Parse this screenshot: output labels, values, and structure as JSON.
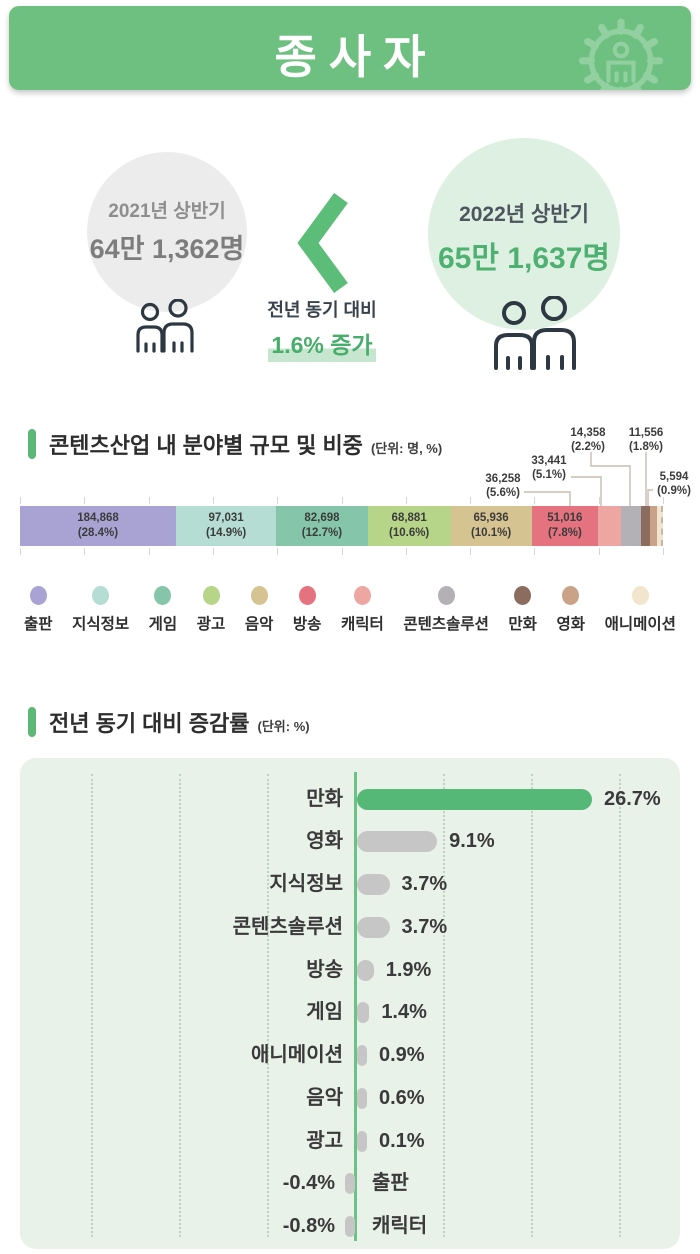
{
  "header": {
    "title": "종사자",
    "bg_color": "#6ec081",
    "icon": "gear-person"
  },
  "comparison": {
    "previous": {
      "period": "2021년 상반기",
      "value": "64만 1,362명"
    },
    "current": {
      "period": "2022년 상반기",
      "value": "65만 1,637명"
    },
    "change_prefix": "전년 동기 대비",
    "change_value": "1.6% 증가",
    "accent_color": "#46ae69"
  },
  "sections": {
    "share": {
      "title_regular": "콘텐츠산업 내 분야별 ",
      "title_bold": "규모 및 비중",
      "unit": "(단위: 명, %)"
    },
    "growth": {
      "title_regular": "전년 동기 대비 ",
      "title_bold": "증감률",
      "unit": "(단위: %)"
    }
  },
  "chart_data": [
    {
      "type": "bar",
      "subtype": "stacked-horizontal-share",
      "title": "콘텐츠산업 내 분야별 규모 및 비중",
      "unit": "명, %",
      "categories": [
        "출판",
        "지식정보",
        "게임",
        "광고",
        "음악",
        "방송",
        "캐릭터",
        "콘텐츠솔루션",
        "만화",
        "영화",
        "애니메이션"
      ],
      "values": [
        184868,
        97031,
        82698,
        68881,
        65936,
        51016,
        36258,
        33441,
        14358,
        11556,
        5594
      ],
      "percents": [
        28.4,
        14.9,
        12.7,
        10.6,
        10.1,
        7.8,
        5.6,
        5.1,
        2.2,
        1.8,
        0.9
      ],
      "value_labels": [
        "184,868",
        "97,031",
        "82,698",
        "68,881",
        "65,936",
        "51,016",
        "36,258",
        "33,441",
        "14,358",
        "11,556",
        "5,594"
      ],
      "percent_labels": [
        "(28.4%)",
        "(14.9%)",
        "(12.7%)",
        "(10.6%)",
        "(10.1%)",
        "(7.8%)",
        "(5.6%)",
        "(5.1%)",
        "(2.2%)",
        "(1.8%)",
        "(0.9%)"
      ],
      "colors": [
        "#a9a3d3",
        "#b6ddd3",
        "#85c5a9",
        "#b6d589",
        "#d6c392",
        "#e5737f",
        "#eda6a1",
        "#b3b1b6",
        "#8b6d60",
        "#c9a287",
        "#f2e5ce"
      ],
      "inline_label_count": 6,
      "legend_position": "bottom",
      "axis_tick_step_percent": 10
    },
    {
      "type": "bar",
      "subtype": "horizontal-growth",
      "title": "전년 동기 대비 증감률",
      "unit": "%",
      "categories": [
        "만화",
        "영화",
        "지식정보",
        "콘텐츠솔루션",
        "방송",
        "게임",
        "애니메이션",
        "음악",
        "광고",
        "출판",
        "캐릭터"
      ],
      "values": [
        26.7,
        9.1,
        3.7,
        3.7,
        1.9,
        1.4,
        0.9,
        0.6,
        0.1,
        -0.4,
        -0.8
      ],
      "value_labels": [
        "26.7%",
        "9.1%",
        "3.7%",
        "3.7%",
        "1.9%",
        "1.4%",
        "0.9%",
        "0.6%",
        "0.1%",
        "-0.4%",
        "-0.8%"
      ],
      "highlight_index": 0,
      "highlight_color": "#56b877",
      "bar_color": "#c6c6c6",
      "xlim": [
        -30,
        30
      ],
      "grid_step": 10,
      "grid": true
    }
  ]
}
